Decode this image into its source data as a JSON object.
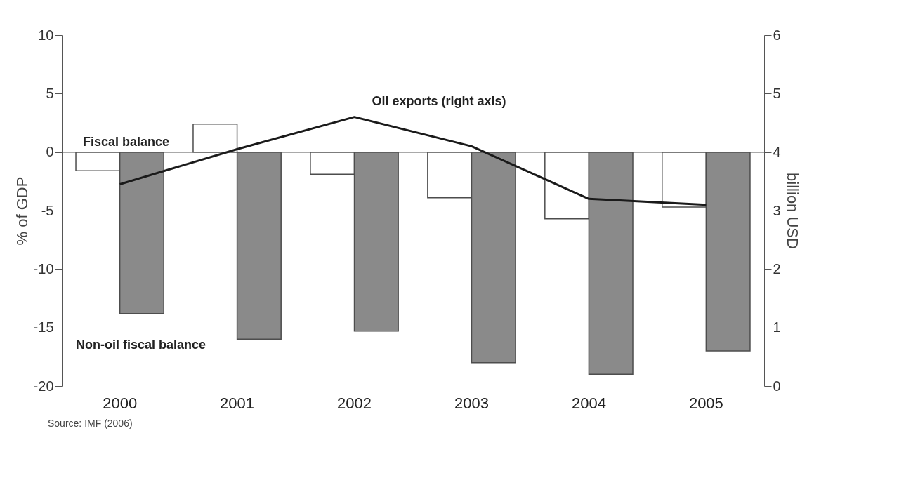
{
  "chart_data": {
    "type": "bar",
    "categories": [
      "2000",
      "2001",
      "2002",
      "2003",
      "2004",
      "2005"
    ],
    "ylabel": "% of GDP",
    "y2label": "billion USD",
    "ylim": [
      -20,
      10
    ],
    "yticks": [
      -20,
      -15,
      -10,
      -5,
      0,
      5,
      10
    ],
    "y2lim": [
      0,
      6
    ],
    "y2ticks": [
      0,
      1,
      2,
      3,
      4,
      5,
      6
    ],
    "series": [
      {
        "name": "Fiscal balance",
        "color": "#ffffff",
        "values": [
          -1.6,
          2.4,
          -1.9,
          -3.9,
          -5.7,
          -4.7
        ]
      },
      {
        "name": "Non-oil fiscal balance",
        "color": "#8a8a8a",
        "values": [
          -13.8,
          -16,
          -15.3,
          -18,
          -19,
          -17
        ]
      },
      {
        "name": "Oil exports (right axis)",
        "type": "line",
        "axis": "y2",
        "color": "#1a1a1a",
        "values": [
          3.45,
          4.05,
          4.6,
          4.1,
          3.2,
          3.1
        ]
      }
    ],
    "ref_lines": [
      {
        "axis": "y",
        "value": 0,
        "color": "#555555"
      }
    ],
    "annotations": [
      "Source: IMF (2006)"
    ],
    "grid": false,
    "legend": false
  }
}
